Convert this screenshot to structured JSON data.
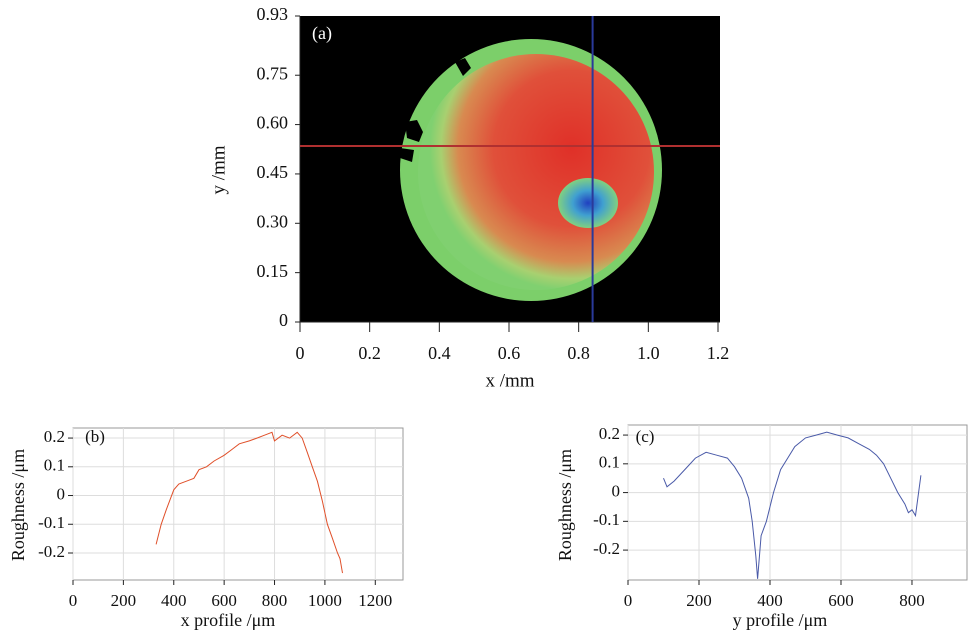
{
  "chart_data": [
    {
      "type": "image",
      "annotation": "(a)",
      "x_label": "x /mm",
      "y_label": "y /mm",
      "xlim": [
        0,
        1.2
      ],
      "ylim": [
        0,
        0.93
      ],
      "xticks": [
        0,
        0.2,
        0.4,
        0.6,
        0.8,
        {
          "value": 1,
          "label": "1.0"
        },
        1.2
      ],
      "yticks": [
        0,
        0.15,
        {
          "value": 0.3,
          "label": "0.30"
        },
        0.45,
        {
          "value": 0.6,
          "label": "0.60"
        },
        0.75,
        0.93
      ],
      "hline": 0.535,
      "vline": 0.84,
      "hline_color": "#b03030",
      "vline_color": "#2a3a9a"
    },
    {
      "type": "line",
      "annotation": "(b)",
      "x_label": "x profile /μm",
      "y_label": "Roughness /μm",
      "xlim": [
        0,
        1310
      ],
      "ylim": [
        -0.294,
        0.235
      ],
      "grid": true,
      "xticks": [
        0,
        200,
        400,
        600,
        800,
        1000,
        1200
      ],
      "yticks": [
        -0.2,
        -0.1,
        0,
        0.1,
        0.2
      ],
      "x": [
        330,
        350,
        370,
        400,
        420,
        450,
        480,
        500,
        530,
        560,
        600,
        630,
        660,
        700,
        730,
        760,
        790,
        800,
        830,
        860,
        890,
        910,
        930,
        950,
        970,
        990,
        1010,
        1030,
        1050,
        1060,
        1070
      ],
      "color": "#e0502a",
      "values": [
        -0.17,
        -0.1,
        -0.05,
        0.02,
        0.04,
        0.05,
        0.06,
        0.09,
        0.1,
        0.12,
        0.14,
        0.16,
        0.18,
        0.19,
        0.2,
        0.21,
        0.22,
        0.19,
        0.21,
        0.2,
        0.22,
        0.2,
        0.15,
        0.1,
        0.05,
        -0.02,
        -0.1,
        -0.15,
        -0.2,
        -0.22,
        -0.27
      ]
    },
    {
      "type": "line",
      "annotation": "(c)",
      "x_label": "y profile /μm",
      "y_label": "Roughness /μm",
      "xlim": [
        0,
        955
      ],
      "ylim": [
        -0.304,
        0.235
      ],
      "grid": true,
      "xticks": [
        0,
        200,
        400,
        600,
        800
      ],
      "yticks": [
        -0.2,
        -0.1,
        0,
        0.1,
        0.2
      ],
      "x": [
        100,
        110,
        130,
        160,
        190,
        220,
        250,
        280,
        300,
        320,
        340,
        350,
        360,
        365,
        375,
        390,
        410,
        430,
        450,
        470,
        500,
        530,
        560,
        590,
        620,
        650,
        680,
        700,
        720,
        740,
        760,
        780,
        790,
        800,
        810,
        825
      ],
      "color": "#4a5aa8",
      "values": [
        0.05,
        0.02,
        0.04,
        0.08,
        0.12,
        0.14,
        0.13,
        0.12,
        0.09,
        0.05,
        -0.02,
        -0.1,
        -0.22,
        -0.3,
        -0.15,
        -0.1,
        0.0,
        0.08,
        0.12,
        0.16,
        0.19,
        0.2,
        0.21,
        0.2,
        0.19,
        0.17,
        0.15,
        0.13,
        0.1,
        0.05,
        0.0,
        -0.04,
        -0.07,
        -0.06,
        -0.08,
        0.06
      ]
    }
  ]
}
